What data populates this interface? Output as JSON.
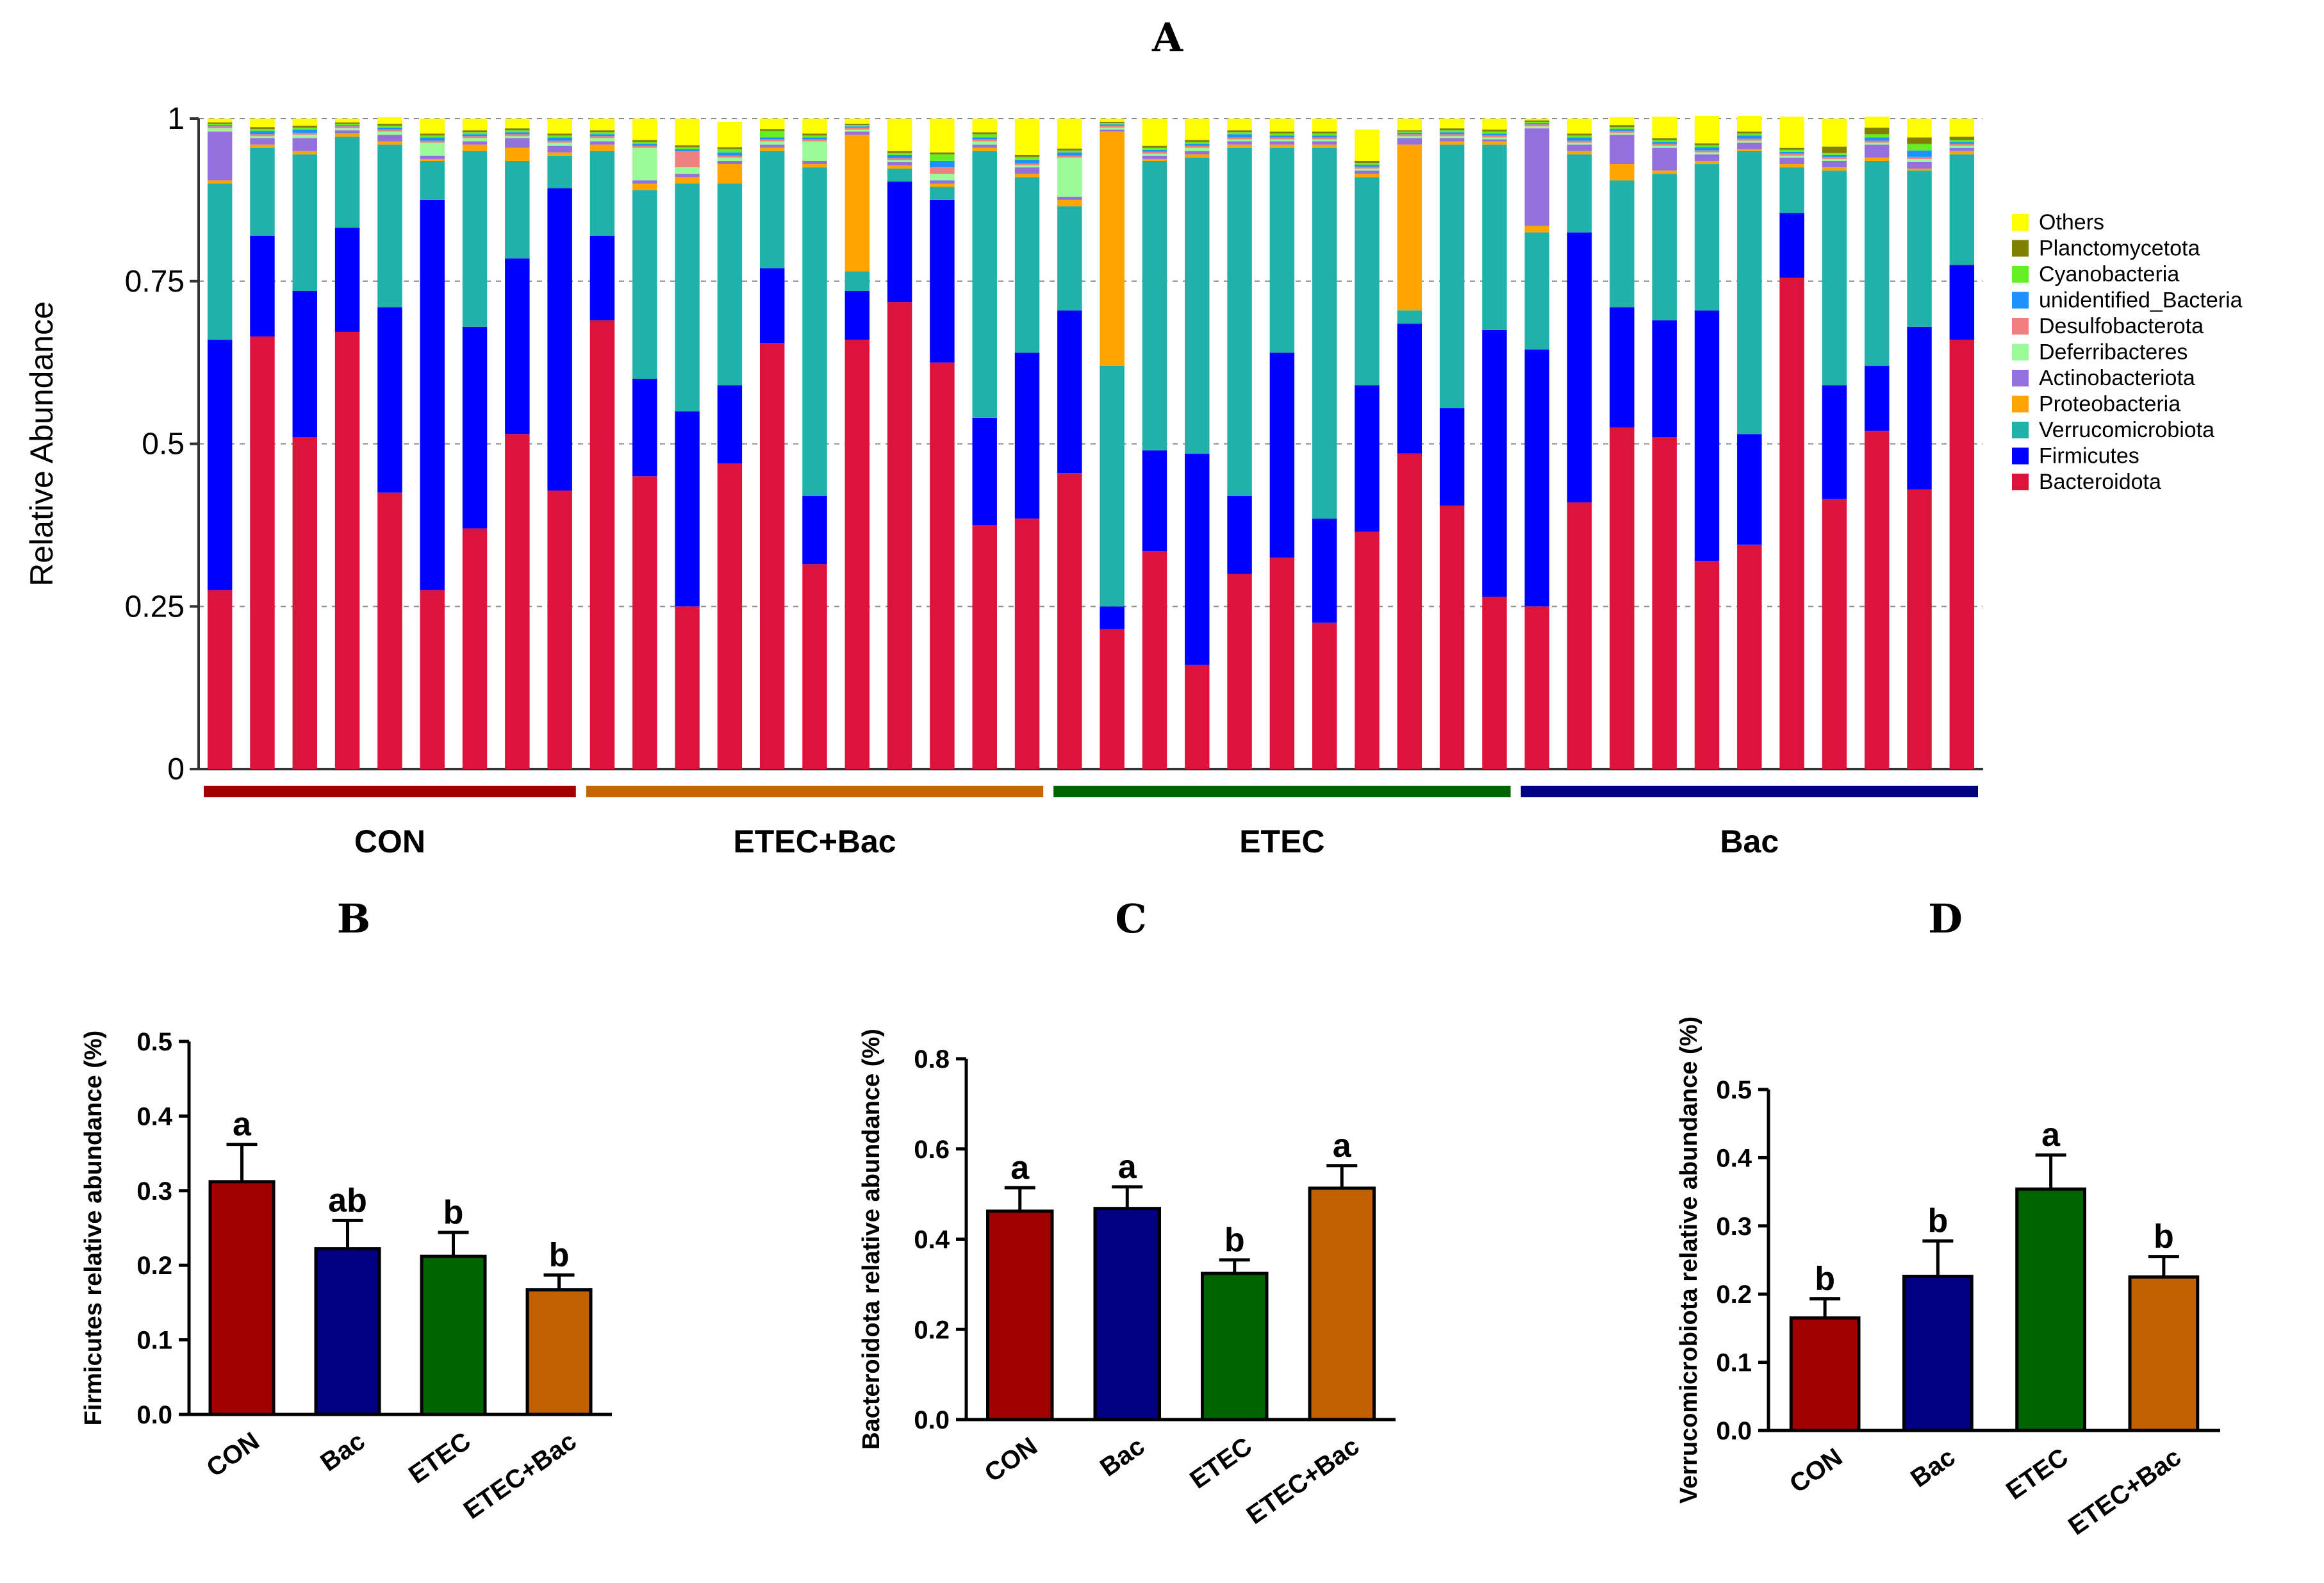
{
  "chart_data": [
    {
      "panel": "A",
      "type": "bar",
      "stacked": true,
      "ylabel": "Relative Abundance",
      "ylim": [
        0,
        1
      ],
      "yticks": [
        "0",
        "0.25",
        "0.5",
        "0.75",
        "1"
      ],
      "ytick_values": [
        0,
        0.25,
        0.5,
        0.75,
        1
      ],
      "grid": "dashed",
      "legend_position": "right",
      "groups": [
        {
          "name": "CON",
          "samples": 9,
          "color": "#a00000"
        },
        {
          "name": "ETEC+Bac",
          "samples": 11,
          "color": "#c86400"
        },
        {
          "name": "ETEC",
          "samples": 11,
          "color": "#006400"
        },
        {
          "name": "Bac",
          "samples": 11,
          "color": "#000080"
        }
      ],
      "series": [
        {
          "name": "Bacteroidota",
          "color": "#dc143c",
          "values": [
            0.275,
            0.665,
            0.51,
            0.672,
            0.425,
            0.275,
            0.37,
            0.515,
            0.428,
            0.69,
            0.45,
            0.25,
            0.47,
            0.655,
            0.315,
            0.66,
            0.718,
            0.625,
            0.375,
            0.385,
            0.455,
            0.215,
            0.335,
            0.16,
            0.3,
            0.325,
            0.225,
            0.365,
            0.485,
            0.405,
            0.265,
            0.25,
            0.41,
            0.525,
            0.51,
            0.32,
            0.345,
            0.755,
            0.415,
            0.52,
            0.43,
            0.66
          ]
        },
        {
          "name": "Firmicutes",
          "color": "#0000ff",
          "values": [
            0.385,
            0.155,
            0.225,
            0.16,
            0.285,
            0.6,
            0.31,
            0.27,
            0.465,
            0.13,
            0.15,
            0.3,
            0.12,
            0.115,
            0.105,
            0.075,
            0.185,
            0.25,
            0.165,
            0.255,
            0.25,
            0.035,
            0.155,
            0.325,
            0.12,
            0.315,
            0.16,
            0.225,
            0.2,
            0.15,
            0.41,
            0.395,
            0.415,
            0.185,
            0.18,
            0.385,
            0.17,
            0.1,
            0.175,
            0.1,
            0.25,
            0.115
          ]
        },
        {
          "name": "Verrucomicrobiota",
          "color": "#20b2aa",
          "values": [
            0.24,
            0.135,
            0.21,
            0.14,
            0.25,
            0.06,
            0.27,
            0.15,
            0.05,
            0.13,
            0.29,
            0.35,
            0.31,
            0.18,
            0.505,
            0.03,
            0.02,
            0.02,
            0.41,
            0.27,
            0.16,
            0.37,
            0.445,
            0.455,
            0.535,
            0.315,
            0.57,
            0.32,
            0.02,
            0.405,
            0.285,
            0.18,
            0.12,
            0.195,
            0.225,
            0.225,
            0.435,
            0.07,
            0.33,
            0.315,
            0.24,
            0.17
          ]
        },
        {
          "name": "Proteobacteria",
          "color": "#ffa500",
          "values": [
            0.005,
            0.005,
            0.005,
            0.005,
            0.005,
            0.003,
            0.01,
            0.02,
            0.005,
            0.01,
            0.01,
            0.01,
            0.03,
            0.005,
            0.005,
            0.21,
            0.005,
            0.005,
            0.005,
            0.005,
            0.01,
            0.36,
            0.003,
            0.005,
            0.005,
            0.005,
            0.005,
            0.005,
            0.255,
            0.005,
            0.005,
            0.01,
            0.005,
            0.025,
            0.005,
            0.005,
            0.003,
            0.005,
            0.005,
            0.005,
            0.003,
            0.005
          ]
        },
        {
          "name": "Actinobacteriota",
          "color": "#9370db",
          "values": [
            0.075,
            0.01,
            0.02,
            0.005,
            0.01,
            0.005,
            0.005,
            0.015,
            0.01,
            0.005,
            0.005,
            0.005,
            0.005,
            0.005,
            0.005,
            0.005,
            0.005,
            0.005,
            0.005,
            0.01,
            0.005,
            0.003,
            0.005,
            0.005,
            0.005,
            0.005,
            0.005,
            0.005,
            0.01,
            0.005,
            0.003,
            0.15,
            0.01,
            0.045,
            0.035,
            0.01,
            0.01,
            0.01,
            0.01,
            0.02,
            0.01,
            0.005
          ]
        },
        {
          "name": "Deferribacteres",
          "color": "#98fb98",
          "values": [
            0.005,
            0.003,
            0.005,
            0.003,
            0.005,
            0.02,
            0.005,
            0.003,
            0.005,
            0.005,
            0.05,
            0.01,
            0.005,
            0.005,
            0.03,
            0.003,
            0.003,
            0.01,
            0.005,
            0.003,
            0.06,
            0.003,
            0.003,
            0.005,
            0.003,
            0.003,
            0.003,
            0.003,
            0.003,
            0.003,
            0.003,
            0.003,
            0.003,
            0.003,
            0.003,
            0.003,
            0.003,
            0.003,
            0.003,
            0.003,
            0.005,
            0.003
          ]
        },
        {
          "name": "Desulfobacterota",
          "color": "#f08080",
          "values": [
            0.003,
            0.003,
            0.003,
            0.003,
            0.003,
            0.003,
            0.003,
            0.003,
            0.003,
            0.003,
            0.003,
            0.025,
            0.003,
            0.003,
            0.003,
            0.003,
            0.003,
            0.01,
            0.003,
            0.003,
            0.003,
            0.003,
            0.003,
            0.003,
            0.003,
            0.003,
            0.003,
            0.003,
            0.003,
            0.003,
            0.003,
            0.003,
            0.003,
            0.003,
            0.003,
            0.003,
            0.003,
            0.003,
            0.003,
            0.003,
            0.003,
            0.003
          ]
        },
        {
          "name": "unidentified_Bacteria",
          "color": "#1e90ff",
          "values": [
            0.002,
            0.005,
            0.005,
            0.002,
            0.003,
            0.005,
            0.003,
            0.003,
            0.005,
            0.003,
            0.003,
            0.003,
            0.005,
            0.003,
            0.003,
            0.002,
            0.005,
            0.01,
            0.003,
            0.005,
            0.005,
            0.002,
            0.003,
            0.003,
            0.005,
            0.003,
            0.003,
            0.003,
            0.002,
            0.003,
            0.003,
            0.002,
            0.005,
            0.003,
            0.003,
            0.005,
            0.005,
            0.003,
            0.003,
            0.005,
            0.01,
            0.003
          ]
        },
        {
          "name": "Cyanobacteria",
          "color": "#66ee22",
          "values": [
            0.002,
            0.003,
            0.003,
            0.002,
            0.003,
            0.003,
            0.003,
            0.003,
            0.003,
            0.003,
            0.003,
            0.003,
            0.005,
            0.01,
            0.003,
            0.002,
            0.003,
            0.01,
            0.005,
            0.005,
            0.003,
            0.002,
            0.003,
            0.003,
            0.003,
            0.003,
            0.003,
            0.003,
            0.002,
            0.003,
            0.003,
            0.002,
            0.003,
            0.003,
            0.003,
            0.003,
            0.003,
            0.003,
            0.003,
            0.005,
            0.01,
            0.003
          ]
        },
        {
          "name": "Planctomycetota",
          "color": "#808000",
          "values": [
            0.002,
            0.003,
            0.003,
            0.002,
            0.003,
            0.003,
            0.003,
            0.003,
            0.003,
            0.003,
            0.003,
            0.003,
            0.003,
            0.003,
            0.003,
            0.002,
            0.003,
            0.003,
            0.003,
            0.003,
            0.003,
            0.002,
            0.003,
            0.003,
            0.003,
            0.003,
            0.003,
            0.003,
            0.002,
            0.003,
            0.003,
            0.002,
            0.003,
            0.003,
            0.003,
            0.003,
            0.003,
            0.003,
            0.01,
            0.01,
            0.01,
            0.005
          ]
        },
        {
          "name": "Others",
          "color": "#ffff00",
          "values": [
            0.006,
            0.013,
            0.011,
            0.006,
            0.01,
            0.023,
            0.018,
            0.015,
            0.023,
            0.018,
            0.033,
            0.041,
            0.039,
            0.016,
            0.023,
            0.008,
            0.05,
            0.052,
            0.021,
            0.056,
            0.046,
            0.005,
            0.042,
            0.033,
            0.018,
            0.02,
            0.02,
            0.048,
            0.018,
            0.015,
            0.017,
            0.003,
            0.023,
            0.012,
            0.033,
            0.042,
            0.024,
            0.048,
            0.043,
            0.017,
            0.029,
            0.028
          ]
        }
      ]
    },
    {
      "panel": "B",
      "type": "bar",
      "ylabel": "Firmicutes relative abundance (%)",
      "ylim": [
        0,
        0.5
      ],
      "yticks": [
        "0.0",
        "0.1",
        "0.2",
        "0.3",
        "0.4",
        "0.5"
      ],
      "ytick_values": [
        0,
        0.1,
        0.2,
        0.3,
        0.4,
        0.5
      ],
      "categories": [
        "CON",
        "Bac",
        "ETEC",
        "ETEC+Bac"
      ],
      "values": [
        0.312,
        0.222,
        0.212,
        0.167
      ],
      "errors": [
        0.05,
        0.038,
        0.032,
        0.02
      ],
      "significance": [
        "a",
        "ab",
        "b",
        "b"
      ],
      "colors": [
        "#a00000",
        "#000080",
        "#006400",
        "#c06000"
      ]
    },
    {
      "panel": "C",
      "type": "bar",
      "ylabel": "Bacteroidota relative abundance (%)",
      "ylim": [
        0,
        0.8
      ],
      "yticks": [
        "0.0",
        "0.2",
        "0.4",
        "0.6",
        "0.8"
      ],
      "ytick_values": [
        0,
        0.2,
        0.4,
        0.6,
        0.8
      ],
      "categories": [
        "CON",
        "Bac",
        "ETEC",
        "ETEC+Bac"
      ],
      "values": [
        0.462,
        0.468,
        0.324,
        0.513
      ],
      "errors": [
        0.052,
        0.048,
        0.03,
        0.05
      ],
      "significance": [
        "a",
        "a",
        "b",
        "a"
      ],
      "colors": [
        "#a00000",
        "#000080",
        "#006400",
        "#c06000"
      ]
    },
    {
      "panel": "D",
      "type": "bar",
      "ylabel": "Verrucomicrobiota relative abundance (%)",
      "ylim": [
        0,
        0.5
      ],
      "yticks": [
        "0.0",
        "0.1",
        "0.2",
        "0.3",
        "0.4",
        "0.5"
      ],
      "ytick_values": [
        0,
        0.1,
        0.2,
        0.3,
        0.4,
        0.5
      ],
      "categories": [
        "CON",
        "Bac",
        "ETEC",
        "ETEC+Bac"
      ],
      "values": [
        0.165,
        0.226,
        0.354,
        0.225
      ],
      "errors": [
        0.028,
        0.052,
        0.05,
        0.03
      ],
      "significance": [
        "b",
        "b",
        "a",
        "b"
      ],
      "colors": [
        "#a00000",
        "#000080",
        "#006400",
        "#c06000"
      ]
    }
  ]
}
